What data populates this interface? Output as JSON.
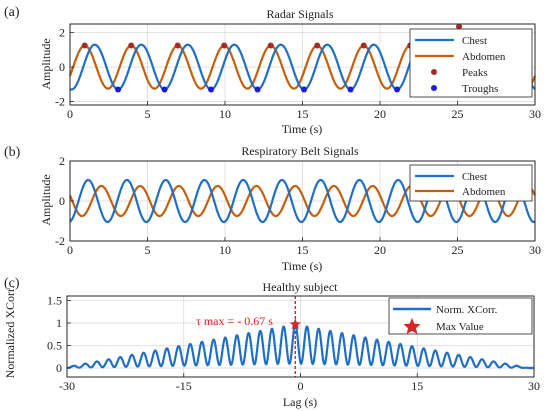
{
  "chart_data": [
    {
      "type": "line",
      "panel_label": "(a)",
      "title": "Radar Signals",
      "xlabel": "Time (s)",
      "ylabel": "Amplitude",
      "xlim": [
        0,
        30
      ],
      "ylim": [
        -2.2,
        2.5
      ],
      "xticks": [
        0,
        5,
        10,
        15,
        20,
        25,
        30
      ],
      "yticks": [
        -2,
        0,
        2
      ],
      "grid": true,
      "legend_position": "top-right",
      "series": [
        {
          "name": "Chest",
          "color": "#1f6fc6",
          "kind": "sine",
          "amplitude": 1.3,
          "period_s": 3.0,
          "phase_s": 0.85,
          "x_range": [
            0,
            30
          ]
        },
        {
          "name": "Abdomen",
          "color": "#c4600d",
          "kind": "sine",
          "amplitude": 1.25,
          "period_s": 3.0,
          "phase_s": 0.2,
          "x_range": [
            0,
            30
          ]
        },
        {
          "name": "Peaks",
          "color": "#a52a2a",
          "kind": "markers",
          "of_series": "Abdomen",
          "at": "peaks"
        },
        {
          "name": "Troughs",
          "color": "#1a1ae6",
          "kind": "markers",
          "of_series": "Chest",
          "at": "troughs"
        }
      ],
      "extra_markers": [
        {
          "x": 25.1,
          "y": 2.35,
          "color": "#a52a2a"
        }
      ]
    },
    {
      "type": "line",
      "panel_label": "(b)",
      "title": "Respiratory Belt Signals",
      "xlabel": "Time (s)",
      "ylabel": "Amplitude",
      "xlim": [
        0,
        30
      ],
      "ylim": [
        -2,
        2
      ],
      "xticks": [
        0,
        5,
        10,
        15,
        20,
        25,
        30
      ],
      "yticks": [
        -2,
        0,
        2
      ],
      "grid": true,
      "legend_position": "top-right",
      "series": [
        {
          "name": "Chest",
          "color": "#1f6fc6",
          "kind": "sine",
          "amplitude": 1.05,
          "period_s": 2.5,
          "phase_s": 0.55,
          "x_range": [
            0,
            30
          ]
        },
        {
          "name": "Abdomen",
          "color": "#c4600d",
          "kind": "sine",
          "amplitude": 0.75,
          "period_s": 2.5,
          "phase_s": 1.4,
          "x_range": [
            0,
            30
          ]
        }
      ]
    },
    {
      "type": "line",
      "panel_label": "(c)",
      "title": "Healthy subject",
      "xlabel": "Lag (s)",
      "ylabel": "Normalized XCorr.",
      "xlim": [
        -30,
        30
      ],
      "ylim": [
        -0.2,
        1.6
      ],
      "xticks": [
        -30,
        -15,
        0,
        15,
        30
      ],
      "yticks": [
        0,
        0.5,
        1,
        1.5
      ],
      "ytick_labels": [
        "0",
        "0.5",
        "1",
        "1.5"
      ],
      "grid": true,
      "legend_position": "top-right",
      "series": [
        {
          "name": "Norm. XCorr.",
          "color": "#1f6fc6",
          "kind": "xcorr",
          "peak": 0.97,
          "center_lag": -0.67,
          "period_s": 1.5,
          "decay_s": 30
        }
      ],
      "max_value": {
        "name": "Max Value",
        "x": -0.67,
        "y": 0.97,
        "color": "#d62728"
      },
      "annotation": {
        "label": "τ max = - 0.67 s",
        "color": "#d62728"
      }
    }
  ]
}
